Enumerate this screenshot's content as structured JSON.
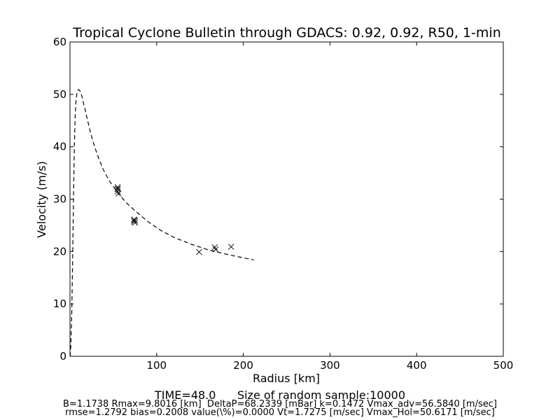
{
  "chart_data": {
    "type": "scatter",
    "title": "Tropical Cyclone Bulletin through GDACS: 0.92, 0.92, R50, 1-min",
    "xlabel": "Radius [km]",
    "ylabel": "Velocity (m/s)",
    "xlim": [
      0,
      500
    ],
    "ylim": [
      0,
      60
    ],
    "xticks": [
      100,
      200,
      300,
      400,
      500
    ],
    "xtick_labels": [
      "100",
      "200",
      "300",
      "400",
      "500"
    ],
    "yticks": [
      0,
      10,
      20,
      30,
      40,
      50,
      60
    ],
    "ytick_labels": [
      "0",
      "10",
      "20",
      "30",
      "40",
      "50",
      "60"
    ],
    "grid": false,
    "series": [
      {
        "style": "dashed-line",
        "color": "#000000",
        "x": [
          0,
          1,
          2,
          3,
          4,
          5,
          6,
          7,
          8,
          9,
          10,
          11,
          12,
          14,
          16,
          18,
          20,
          24,
          28,
          32,
          38,
          45,
          55,
          65,
          75,
          90,
          105,
          120,
          140,
          160,
          180,
          200,
          212
        ],
        "y": [
          0,
          2,
          8,
          18,
          30,
          40,
          46,
          49,
          50.3,
          50.8,
          50.9,
          50.8,
          50.5,
          49.5,
          48,
          46.7,
          45.2,
          42.5,
          40.2,
          38.3,
          35.8,
          33.6,
          31.2,
          29.3,
          27.8,
          25.7,
          24.0,
          22.7,
          21.4,
          20.3,
          19.5,
          18.8,
          18.4
        ]
      },
      {
        "style": "x-markers",
        "color": "#000000",
        "x": [
          55,
          55,
          55,
          56,
          55,
          74,
          74,
          75,
          74,
          75,
          149,
          167,
          168,
          186
        ],
        "y": [
          32.3,
          31.9,
          31.5,
          31.1,
          32.0,
          26.1,
          25.7,
          25.5,
          26.0,
          25.9,
          19.9,
          20.8,
          20.4,
          20.9
        ]
      }
    ]
  },
  "footer": {
    "line1": "TIME=48.0      Size of random sample:10000",
    "line2": "B=1.1738 Rmax=9.8016 [km]  DeltaP=68.2339 [mBar] k=0.1472 Vmax_adv=56.5840 [m/sec]",
    "line3": "rmse=1.2792 bias=0.2008 value(\\%)=0.0000 Vt=1.7275 [m/sec] Vmax_Hol=50.6171 [m/sec]"
  }
}
